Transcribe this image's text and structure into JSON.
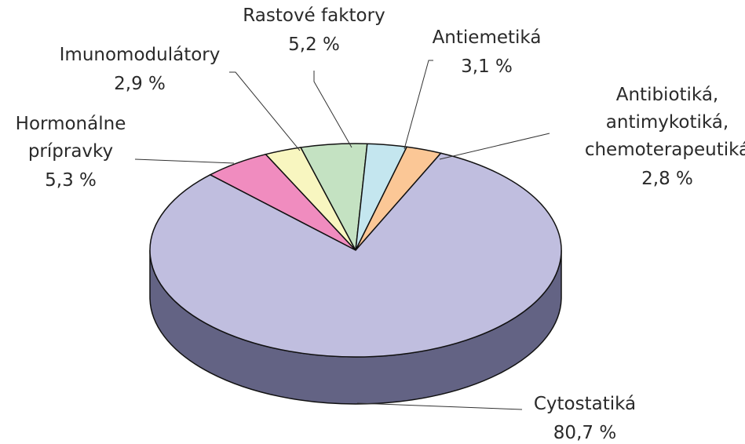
{
  "chart_data": {
    "type": "pie",
    "categories": [
      "Hormonálne\nprípravky",
      "Imunomodulátory",
      "Rastové faktory",
      "Antiemetiká",
      "Antibiotiká,\nantimykotiká,\nchemoterapeutiká",
      "Cytostatiká"
    ],
    "values": [
      5.3,
      2.9,
      5.2,
      3.1,
      2.8,
      80.7
    ],
    "value_labels": [
      "5,3 %",
      "2,9 %",
      "5,2 %",
      "3,1 %",
      "2,8 %",
      "80,7 %"
    ],
    "colors": [
      "#f08cbf",
      "#f8f6c0",
      "#c4e2c2",
      "#c4e6ef",
      "#fbc796",
      "#c0bedf"
    ]
  }
}
